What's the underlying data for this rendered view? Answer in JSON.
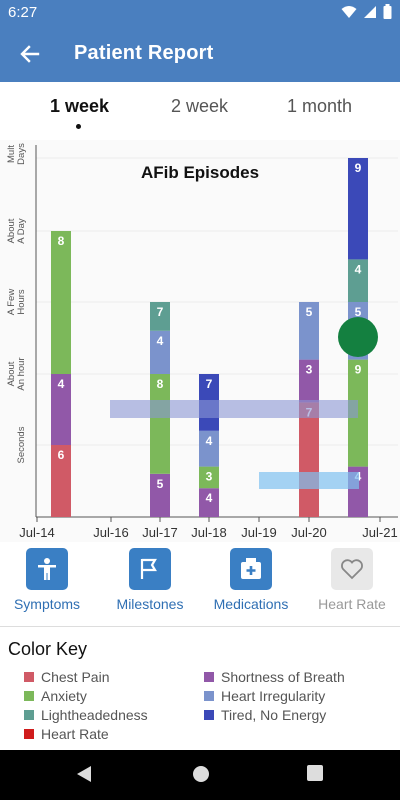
{
  "status": {
    "time": "6:27"
  },
  "app_bar": {
    "title": "Patient Report"
  },
  "tabs": [
    {
      "label": "1 week",
      "active": true
    },
    {
      "label": "2 week",
      "active": false
    },
    {
      "label": "1 month",
      "active": false
    }
  ],
  "chart_data": {
    "type": "bar",
    "title": "AFib Episodes",
    "y_levels": [
      "Seconds",
      "About An hour",
      "A Few Hours",
      "About A Day",
      "Mult Days"
    ],
    "x_ticks": [
      "Jul-14",
      "Jul-16",
      "Jul-17",
      "Jul-18",
      "Jul-19",
      "Jul-20",
      "Jul-21"
    ],
    "series_colors": {
      "chest_pain": "#d05a66",
      "anxiety": "#7cb85a",
      "lightheadedness": "#5e9e92",
      "heart_rate": "#d01c1c",
      "shortness_of_breath": "#9158a8",
      "heart_irregularity": "#7b93cc",
      "tired": "#3b49b8"
    },
    "stacks": [
      {
        "x": "Jul-14",
        "segments": [
          {
            "series": "chest_pain",
            "value": 6,
            "top_level": 1
          },
          {
            "series": "shortness_of_breath",
            "value": 4,
            "top_level": 2
          },
          {
            "series": "anxiety",
            "value": 8,
            "top_level": 4
          }
        ]
      },
      {
        "x": "Jul-17",
        "segments": [
          {
            "series": "shortness_of_breath",
            "value": 5,
            "top_level": 0.6
          },
          {
            "series": "anxiety",
            "value": 8,
            "top_level": 2
          },
          {
            "series": "heart_irregularity",
            "value": 4,
            "top_level": 2.6
          },
          {
            "series": "lightheadedness",
            "value": 7,
            "top_level": 3
          }
        ]
      },
      {
        "x": "Jul-18",
        "segments": [
          {
            "series": "shortness_of_breath",
            "value": 4,
            "top_level": 0.4
          },
          {
            "series": "anxiety",
            "value": 3,
            "top_level": 0.7
          },
          {
            "series": "heart_irregularity",
            "value": 4,
            "top_level": 1.2
          },
          {
            "series": "tired",
            "value": 7,
            "top_level": 2
          }
        ]
      },
      {
        "x": "Jul-20",
        "segments": [
          {
            "series": "chest_pain",
            "value": 7,
            "top_level": 1.6
          },
          {
            "series": "shortness_of_breath",
            "value": 3,
            "top_level": 2.2
          },
          {
            "series": "heart_irregularity",
            "value": 5,
            "top_level": 3
          }
        ]
      },
      {
        "x": "Jul-21",
        "segments": [
          {
            "series": "shortness_of_breath",
            "value": 4,
            "top_level": 0.7
          },
          {
            "series": "anxiety",
            "value": 9,
            "top_level": 2.2
          },
          {
            "series": "heart_irregularity",
            "value": 5,
            "top_level": 3
          },
          {
            "series": "lightheadedness",
            "value": 4,
            "top_level": 3.6
          },
          {
            "series": "tired",
            "value": 9,
            "top_level": 5
          }
        ]
      }
    ]
  },
  "bottom_nav": [
    {
      "label": "Symptoms",
      "icon": "person-icon",
      "enabled": true
    },
    {
      "label": "Milestones",
      "icon": "flag-icon",
      "enabled": true
    },
    {
      "label": "Medications",
      "icon": "medication-icon",
      "enabled": true
    },
    {
      "label": "Heart Rate",
      "icon": "heart-icon",
      "enabled": false
    }
  ],
  "color_key": {
    "title": "Color Key",
    "items": [
      {
        "label": "Chest Pain",
        "color": "#d05a66"
      },
      {
        "label": "Shortness of Breath",
        "color": "#9158a8"
      },
      {
        "label": "Anxiety",
        "color": "#7cb85a"
      },
      {
        "label": "Heart Irregularity",
        "color": "#7b93cc"
      },
      {
        "label": "Lightheadedness",
        "color": "#5e9e92"
      },
      {
        "label": "Tired, No Energy",
        "color": "#3b49b8"
      },
      {
        "label": "Heart Rate",
        "color": "#d01c1c"
      }
    ]
  },
  "colors": {
    "accent": "#4a7fbf",
    "nav_icon_bg": "#3a7fc4",
    "disabled_icon_bg": "#e8e8e8",
    "marker": "#148040"
  }
}
